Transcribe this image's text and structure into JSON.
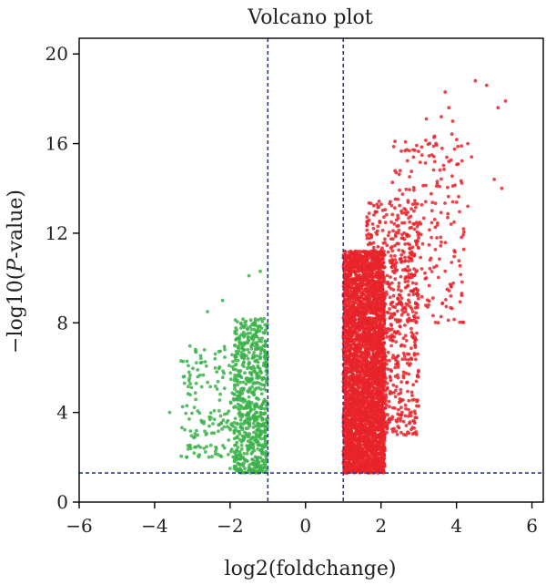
{
  "chart_data": {
    "type": "scatter",
    "title": "Volcano plot",
    "xlabel": "log2(foldchange)",
    "ylabel_prefix": "−log10(",
    "ylabel_italic": "P",
    "ylabel_suffix": "-value)",
    "xlim": [
      -6,
      6.3
    ],
    "ylim": [
      0,
      20.7
    ],
    "x_ticks": [
      -6,
      -4,
      -2,
      0,
      2,
      4,
      6
    ],
    "x_tick_labels": [
      "−6",
      "−4",
      "−2",
      "0",
      "2",
      "4",
      "6"
    ],
    "y_ticks": [
      0,
      4,
      8,
      12,
      16,
      20
    ],
    "y_tick_labels": [
      "0",
      "4",
      "8",
      "12",
      "16",
      "20"
    ],
    "vlines": [
      -1,
      1
    ],
    "hline": 1.3,
    "grid": false,
    "series": [
      {
        "color": "#3cb24a",
        "clusters": [
          {
            "x": [
              -1.9,
              -1.0
            ],
            "y": [
              1.3,
              8.2
            ],
            "count": 700
          },
          {
            "x": [
              -3.3,
              -1.9
            ],
            "y": [
              2.0,
              7.0
            ],
            "count": 160
          }
        ],
        "extra_points": [
          {
            "x": -2.6,
            "y": 8.5
          },
          {
            "x": -3.3,
            "y": 6.3
          },
          {
            "x": -3.6,
            "y": 4.0
          },
          {
            "x": -2.2,
            "y": 9.0
          },
          {
            "x": -1.5,
            "y": 10.1
          },
          {
            "x": -1.2,
            "y": 10.3
          },
          {
            "x": -1.7,
            "y": 1.4
          },
          {
            "x": -2.0,
            "y": 1.5
          }
        ]
      },
      {
        "color": "#e8232a",
        "clusters": [
          {
            "x": [
              1.0,
              2.1
            ],
            "y": [
              1.3,
              11.2
            ],
            "count": 3600
          },
          {
            "x": [
              1.6,
              3.0
            ],
            "y": [
              3.0,
              13.5
            ],
            "count": 650
          },
          {
            "x": [
              2.3,
              4.2
            ],
            "y": [
              8.0,
              16.5
            ],
            "count": 230
          }
        ],
        "extra_points": [
          {
            "x": 3.7,
            "y": 18.3
          },
          {
            "x": 4.5,
            "y": 18.8
          },
          {
            "x": 4.8,
            "y": 18.6
          },
          {
            "x": 3.8,
            "y": 17.6
          },
          {
            "x": 5.3,
            "y": 17.9
          },
          {
            "x": 5.1,
            "y": 17.6
          },
          {
            "x": 3.6,
            "y": 17.2
          },
          {
            "x": 3.9,
            "y": 17.0
          },
          {
            "x": 3.2,
            "y": 17.1
          },
          {
            "x": 3.8,
            "y": 15.2
          },
          {
            "x": 4.3,
            "y": 16.0
          },
          {
            "x": 4.4,
            "y": 15.4
          },
          {
            "x": 5.0,
            "y": 14.4
          },
          {
            "x": 5.2,
            "y": 14.0
          },
          {
            "x": 4.3,
            "y": 13.2
          },
          {
            "x": 3.9,
            "y": 13.4
          },
          {
            "x": 3.0,
            "y": 12.0
          },
          {
            "x": 2.8,
            "y": 8.1
          },
          {
            "x": 2.9,
            "y": 7.0
          },
          {
            "x": 2.6,
            "y": 5.8
          },
          {
            "x": 2.5,
            "y": 4.6
          },
          {
            "x": 1.3,
            "y": 1.4
          },
          {
            "x": 1.8,
            "y": 1.6
          },
          {
            "x": 2.1,
            "y": 2.3
          },
          {
            "x": 3.3,
            "y": 10.8
          },
          {
            "x": 3.6,
            "y": 11.6
          },
          {
            "x": 2.4,
            "y": 14.7
          }
        ]
      }
    ],
    "colors": {
      "line": "#2b3a8f",
      "axis": "#000000"
    }
  }
}
